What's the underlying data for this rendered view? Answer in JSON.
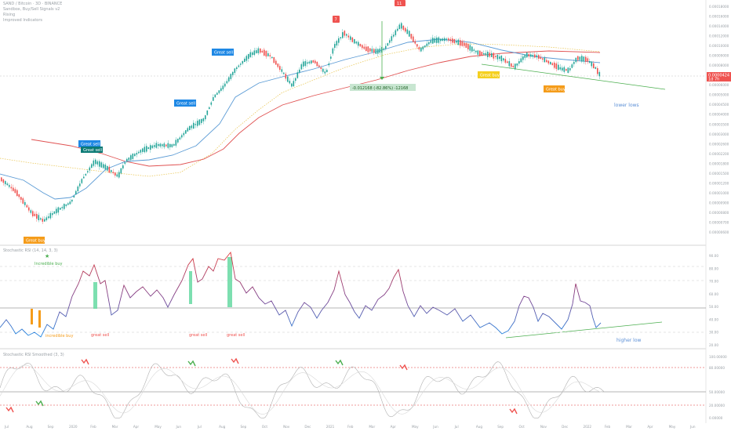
{
  "header": {
    "symbol_line": "SAND / Bitcoin · 3D · BINANCE",
    "line2": "Sandbox, Buy/Sell Signals v2",
    "line3": "Rising",
    "line4": "Improved Indicators"
  },
  "price_tag": {
    "value": "0.0000424",
    "sub": "1d 7h"
  },
  "measure_label": "-0.012168 (-82.86%) -12168",
  "signals": {
    "great_sell_1": "Great sell",
    "great_sell_2": "Great sell",
    "great_sell_3": "Great sell",
    "great_sell_4": "Great sell",
    "great_buy_1": "Great buy",
    "great_buy_2": "Great buy",
    "great_buy_3": "Great buy",
    "incredible_buy": "Incredible buy",
    "flag_1": "7",
    "flag_2": "11"
  },
  "annotations": {
    "lower_lows": "lower lows",
    "higher_low": "higher low",
    "rsi_incredible": "incredible buy",
    "rsi_great_sell_1": "great sell",
    "rsi_great_sell_2": "great sell",
    "rsi_great_sell_3": "great sell"
  },
  "rsi_panel_title": "Stochastic RSI (14, 14, 3, 3)",
  "stoch_panel_title": "Stochastic RSI Smoothed (3, 3)",
  "x_axis_labels": [
    "Jul",
    "Aug",
    "Sep",
    "2020",
    "Feb",
    "Mar",
    "Apr",
    "May",
    "Jun",
    "Jul",
    "Aug",
    "Sep",
    "Oct",
    "Nov",
    "Dec",
    "2021",
    "Feb",
    "Mar",
    "Apr",
    "May",
    "Jun",
    "Jul",
    "Aug",
    "Sep",
    "Oct",
    "Nov",
    "Dec",
    "2022",
    "Feb",
    "Mar",
    "Apr",
    "May",
    "Jun"
  ],
  "price_axis_labels": [
    "0.00018000",
    "0.00016000",
    "0.00014000",
    "0.00012000",
    "0.00010000",
    "0.00009000",
    "0.00008000",
    "0.00007000",
    "0.00006000",
    "0.00005000",
    "0.00004500",
    "0.00004000",
    "0.00003500",
    "0.00003000",
    "0.00002600",
    "0.00002200",
    "0.00001800",
    "0.00001500",
    "0.00001200",
    "0.00001000",
    "0.00000900",
    "0.00000800",
    "0.00000700",
    "0.00000600"
  ],
  "rsi_axis_labels": [
    "90.00",
    "80.00",
    "70.00",
    "60.00",
    "50.00",
    "40.00",
    "30.00",
    "20.00"
  ],
  "stoch_axis_labels": [
    "100.00000",
    "80.00000",
    "50.00000",
    "20.00000",
    "0.00000"
  ],
  "colors": {
    "up_candle": "#26a69a",
    "down_candle": "#ef5350",
    "ma_red": "#e05252",
    "ma_blue": "#5b9bd5",
    "ma_yellow": "#e8c34a",
    "trend_green": "#4caf50",
    "signal_blue": "#1e88e5",
    "signal_orange": "#f59c1a",
    "signal_yellow": "#f5d020"
  }
}
